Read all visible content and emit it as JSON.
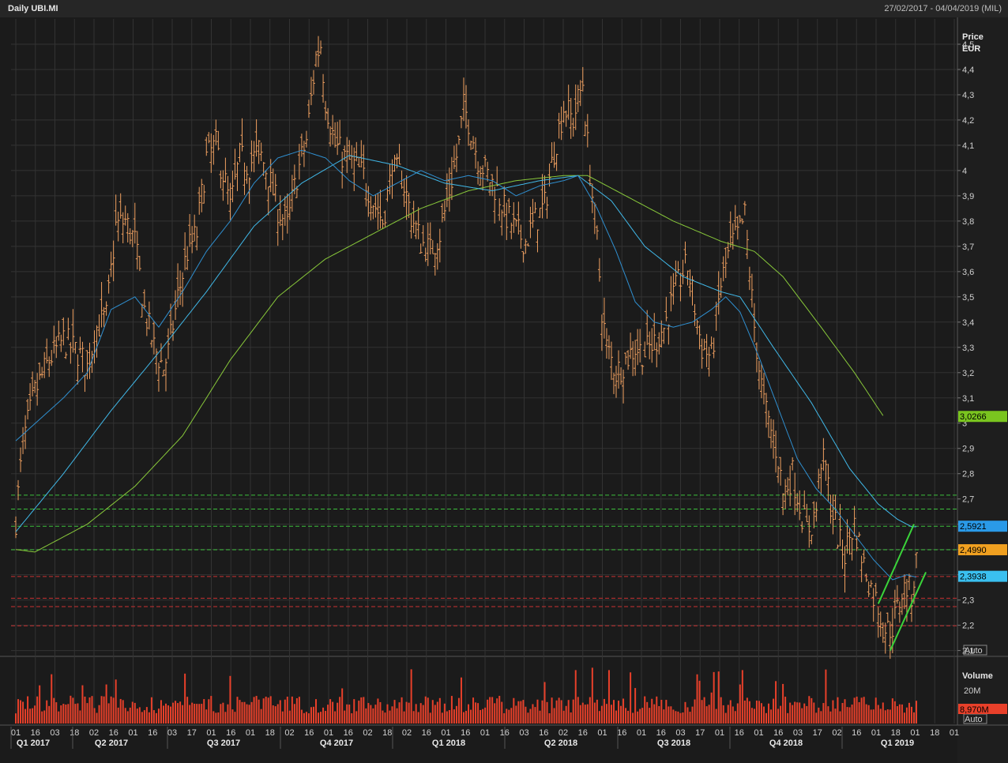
{
  "header": {
    "title": "Daily UBI.MI",
    "range": "27/02/2017 - 04/04/2019 (MIL)"
  },
  "axis": {
    "price_label": "Price",
    "price_unit": "EUR",
    "auto_label": "Auto",
    "volume_label": "Volume",
    "volume_tick": "20M"
  },
  "colors": {
    "background": "#1b1b1b",
    "grid": "#333333",
    "candle": "#f0a060",
    "volume": "#e8402a",
    "ma_fast": "#2f8fd0",
    "ma_mid": "#40b8e8",
    "ma_slow": "#88c83a",
    "support_green": "#3cbf3c",
    "support_red": "#c83232",
    "channel": "#3ad43a"
  },
  "tags": [
    {
      "text": "3,0266",
      "color": "#7ac51f",
      "textColor": "#000000",
      "price": 3.0266
    },
    {
      "text": "2,5921",
      "color": "#2a9ae8",
      "textColor": "#000000",
      "price": 2.5921
    },
    {
      "text": "2,4990",
      "color": "#f0a020",
      "textColor": "#000000",
      "price": 2.499
    },
    {
      "text": "2,3938",
      "color": "#3ac0f0",
      "textColor": "#000000",
      "price": 2.3938
    }
  ],
  "volume_tag": {
    "text": "8,970M",
    "color": "#e8402a",
    "textColor": "#000000"
  },
  "chart_data": {
    "type": "candlestick",
    "ylim": [
      2.08,
      4.6
    ],
    "yticks": [
      "2,1",
      "2,2",
      "2,3",
      "2,4",
      "2,5",
      "2,6",
      "2,7",
      "2,8",
      "2,9",
      "3",
      "3,1",
      "3,2",
      "3,3",
      "3,4",
      "3,5",
      "3,6",
      "3,7",
      "3,8",
      "3,9",
      "4",
      "4,1",
      "4,2",
      "4,3",
      "4,4",
      "4,5"
    ],
    "ytick_values": [
      2.1,
      2.2,
      2.3,
      2.4,
      2.5,
      2.6,
      2.7,
      2.8,
      2.9,
      3.0,
      3.1,
      3.2,
      3.3,
      3.4,
      3.5,
      3.6,
      3.7,
      3.8,
      3.9,
      4.0,
      4.1,
      4.2,
      4.3,
      4.4,
      4.5
    ],
    "xticks": [
      "01",
      "16",
      "03",
      "18",
      "02",
      "16",
      "01",
      "16",
      "03",
      "17",
      "01",
      "16",
      "01",
      "18",
      "02",
      "16",
      "01",
      "16",
      "02",
      "18",
      "02",
      "16",
      "01",
      "16",
      "01",
      "16",
      "03",
      "16",
      "02",
      "16",
      "01",
      "16",
      "01",
      "16",
      "03",
      "17",
      "01",
      "16",
      "01",
      "16",
      "03",
      "17",
      "02",
      "16",
      "01",
      "18",
      "01",
      "18",
      "01"
    ],
    "quarters": [
      "Q1 2017",
      "Q2 2017",
      "Q3 2017",
      "Q4 2017",
      "Q1 2018",
      "Q2 2018",
      "Q3 2018",
      "Q4 2018",
      "Q1 2019"
    ],
    "price_anchors": [
      [
        0,
        2.62
      ],
      [
        3,
        2.92
      ],
      [
        8,
        3.12
      ],
      [
        14,
        3.25
      ],
      [
        20,
        3.33
      ],
      [
        26,
        3.28
      ],
      [
        30,
        3.22
      ],
      [
        34,
        3.38
      ],
      [
        38,
        3.42
      ],
      [
        42,
        3.78
      ],
      [
        46,
        3.8
      ],
      [
        50,
        3.72
      ],
      [
        54,
        3.45
      ],
      [
        58,
        3.3
      ],
      [
        62,
        3.22
      ],
      [
        64,
        3.28
      ],
      [
        68,
        3.5
      ],
      [
        72,
        3.68
      ],
      [
        76,
        3.75
      ],
      [
        80,
        4.05
      ],
      [
        84,
        4.1
      ],
      [
        88,
        3.95
      ],
      [
        90,
        3.85
      ],
      [
        94,
        4.05
      ],
      [
        98,
        4.02
      ],
      [
        102,
        4.08
      ],
      [
        106,
        3.98
      ],
      [
        110,
        3.85
      ],
      [
        114,
        3.78
      ],
      [
        118,
        3.98
      ],
      [
        122,
        4.12
      ],
      [
        126,
        4.45
      ],
      [
        128,
        4.5
      ],
      [
        130,
        4.28
      ],
      [
        134,
        4.1
      ],
      [
        138,
        4.05
      ],
      [
        142,
        4.02
      ],
      [
        146,
        3.98
      ],
      [
        150,
        3.88
      ],
      [
        154,
        3.8
      ],
      [
        158,
        4.0
      ],
      [
        162,
        3.98
      ],
      [
        166,
        3.82
      ],
      [
        170,
        3.72
      ],
      [
        174,
        3.68
      ],
      [
        178,
        3.75
      ],
      [
        182,
        3.92
      ],
      [
        186,
        4.1
      ],
      [
        188,
        4.25
      ],
      [
        190,
        4.2
      ],
      [
        194,
        4.05
      ],
      [
        198,
        3.98
      ],
      [
        202,
        3.92
      ],
      [
        206,
        3.82
      ],
      [
        210,
        3.76
      ],
      [
        214,
        3.72
      ],
      [
        218,
        3.8
      ],
      [
        222,
        3.86
      ],
      [
        226,
        4.08
      ],
      [
        230,
        4.25
      ],
      [
        234,
        4.2
      ],
      [
        238,
        4.35
      ],
      [
        240,
        4.1
      ],
      [
        242,
        3.9
      ],
      [
        244,
        3.72
      ],
      [
        246,
        3.45
      ],
      [
        248,
        3.3
      ],
      [
        252,
        3.2
      ],
      [
        256,
        3.25
      ],
      [
        260,
        3.3
      ],
      [
        264,
        3.28
      ],
      [
        268,
        3.32
      ],
      [
        272,
        3.38
      ],
      [
        276,
        3.5
      ],
      [
        280,
        3.6
      ],
      [
        282,
        3.62
      ],
      [
        284,
        3.52
      ],
      [
        286,
        3.4
      ],
      [
        288,
        3.3
      ],
      [
        292,
        3.26
      ],
      [
        296,
        3.55
      ],
      [
        300,
        3.7
      ],
      [
        304,
        3.76
      ],
      [
        306,
        3.82
      ],
      [
        308,
        3.6
      ],
      [
        310,
        3.38
      ],
      [
        312,
        3.22
      ],
      [
        314,
        3.08
      ],
      [
        316,
        3.0
      ],
      [
        318,
        2.94
      ],
      [
        320,
        2.86
      ],
      [
        322,
        2.72
      ],
      [
        324,
        2.76
      ],
      [
        326,
        2.8
      ],
      [
        328,
        2.72
      ],
      [
        330,
        2.64
      ],
      [
        332,
        2.58
      ],
      [
        334,
        2.6
      ],
      [
        336,
        2.66
      ],
      [
        338,
        2.86
      ],
      [
        340,
        2.82
      ],
      [
        342,
        2.68
      ],
      [
        344,
        2.6
      ],
      [
        346,
        2.52
      ],
      [
        348,
        2.48
      ],
      [
        350,
        2.55
      ],
      [
        352,
        2.6
      ],
      [
        354,
        2.52
      ],
      [
        356,
        2.44
      ],
      [
        358,
        2.38
      ],
      [
        360,
        2.32
      ],
      [
        362,
        2.28
      ],
      [
        364,
        2.2
      ],
      [
        366,
        2.18
      ],
      [
        368,
        2.2
      ],
      [
        370,
        2.26
      ],
      [
        372,
        2.33
      ],
      [
        374,
        2.35
      ],
      [
        376,
        2.32
      ],
      [
        378,
        2.45
      ]
    ],
    "bars": 379,
    "ma_fast_anchors": [
      [
        0,
        2.93
      ],
      [
        20,
        3.1
      ],
      [
        30,
        3.2
      ],
      [
        40,
        3.45
      ],
      [
        50,
        3.5
      ],
      [
        60,
        3.38
      ],
      [
        70,
        3.52
      ],
      [
        80,
        3.68
      ],
      [
        90,
        3.8
      ],
      [
        100,
        3.95
      ],
      [
        110,
        4.05
      ],
      [
        120,
        4.08
      ],
      [
        130,
        4.05
      ],
      [
        140,
        3.96
      ],
      [
        150,
        3.9
      ],
      [
        160,
        3.95
      ],
      [
        170,
        4.0
      ],
      [
        180,
        3.96
      ],
      [
        190,
        3.98
      ],
      [
        200,
        3.96
      ],
      [
        210,
        3.9
      ],
      [
        220,
        3.94
      ],
      [
        230,
        3.96
      ],
      [
        236,
        3.98
      ],
      [
        244,
        3.85
      ],
      [
        252,
        3.68
      ],
      [
        260,
        3.48
      ],
      [
        268,
        3.4
      ],
      [
        276,
        3.38
      ],
      [
        284,
        3.4
      ],
      [
        292,
        3.45
      ],
      [
        298,
        3.5
      ],
      [
        304,
        3.44
      ],
      [
        312,
        3.26
      ],
      [
        320,
        3.06
      ],
      [
        328,
        2.86
      ],
      [
        336,
        2.74
      ],
      [
        344,
        2.66
      ],
      [
        352,
        2.56
      ],
      [
        360,
        2.46
      ],
      [
        368,
        2.38
      ],
      [
        374,
        2.4
      ],
      [
        378,
        2.39
      ]
    ],
    "ma_mid_anchors": [
      [
        0,
        2.57
      ],
      [
        20,
        2.8
      ],
      [
        40,
        3.05
      ],
      [
        60,
        3.28
      ],
      [
        80,
        3.52
      ],
      [
        100,
        3.78
      ],
      [
        120,
        3.95
      ],
      [
        140,
        4.06
      ],
      [
        160,
        4.02
      ],
      [
        180,
        3.95
      ],
      [
        200,
        3.92
      ],
      [
        220,
        3.96
      ],
      [
        236,
        3.98
      ],
      [
        250,
        3.88
      ],
      [
        264,
        3.7
      ],
      [
        280,
        3.58
      ],
      [
        296,
        3.52
      ],
      [
        304,
        3.5
      ],
      [
        318,
        3.3
      ],
      [
        334,
        3.08
      ],
      [
        350,
        2.82
      ],
      [
        362,
        2.68
      ],
      [
        370,
        2.62
      ],
      [
        376,
        2.59
      ],
      [
        378,
        2.59
      ]
    ],
    "ma_slow_anchors": [
      [
        0,
        2.5
      ],
      [
        8,
        2.49
      ],
      [
        30,
        2.6
      ],
      [
        50,
        2.75
      ],
      [
        70,
        2.95
      ],
      [
        90,
        3.25
      ],
      [
        110,
        3.5
      ],
      [
        130,
        3.65
      ],
      [
        150,
        3.75
      ],
      [
        170,
        3.85
      ],
      [
        190,
        3.92
      ],
      [
        210,
        3.96
      ],
      [
        230,
        3.98
      ],
      [
        240,
        3.98
      ],
      [
        256,
        3.9
      ],
      [
        276,
        3.8
      ],
      [
        296,
        3.72
      ],
      [
        310,
        3.68
      ],
      [
        322,
        3.58
      ],
      [
        338,
        3.38
      ],
      [
        352,
        3.2
      ],
      [
        364,
        3.03
      ]
    ],
    "support_lines_green": [
      2.715,
      2.66,
      2.592,
      2.499
    ],
    "support_lines_red": [
      2.393,
      2.307,
      2.274,
      2.198
    ],
    "channel_lines": [
      {
        "x1": 362,
        "y1": 2.285,
        "x2": 377,
        "y2": 2.6
      },
      {
        "x1": 367,
        "y1": 2.1,
        "x2": 382,
        "y2": 2.41
      }
    ]
  }
}
